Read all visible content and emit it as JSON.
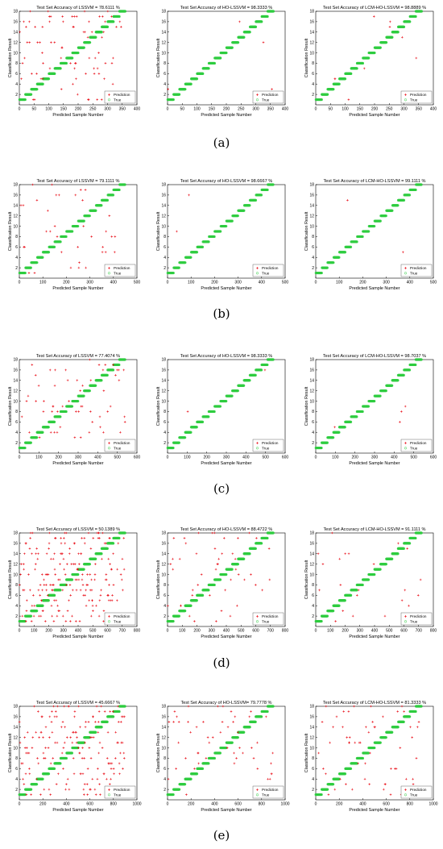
{
  "colors": {
    "prediction": "#e8000b",
    "true": "#2ecc40",
    "axis": "#000000",
    "background": "#ffffff"
  },
  "row_labels": [
    "(a)",
    "(b)",
    "(c)",
    "(d)",
    "(e)"
  ],
  "chart_data": [
    {
      "type": "scatter",
      "row": "(a)",
      "title": "Test Set Accuracy of LSSVM = 78.6111 %",
      "xlabel": "Predicted Sample Number",
      "ylabel": "Classification Result",
      "xlim": [
        0,
        400
      ],
      "ylim": [
        0,
        18
      ],
      "xticks": [
        0,
        50,
        100,
        150,
        200,
        250,
        300,
        350,
        400
      ],
      "yticks": [
        2,
        4,
        6,
        8,
        10,
        12,
        14,
        16,
        18
      ],
      "legend": [
        "Prediction",
        "True"
      ],
      "legend_position": "bottom-right",
      "n_samples": 360,
      "accuracy": 78.6111
    },
    {
      "type": "scatter",
      "row": "(a)",
      "title": "Test Set Accuracy of HO-LSSVM  = 98.3333 %",
      "xlabel": "Predicted Sample Number",
      "ylabel": "Classification Result",
      "xlim": [
        0,
        400
      ],
      "ylim": [
        0,
        18
      ],
      "xticks": [
        0,
        50,
        100,
        150,
        200,
        250,
        300,
        350,
        400
      ],
      "yticks": [
        2,
        4,
        6,
        8,
        10,
        12,
        14,
        16,
        18
      ],
      "legend": [
        "Prediction",
        "True"
      ],
      "legend_position": "bottom-right",
      "n_samples": 360,
      "accuracy": 98.3333
    },
    {
      "type": "scatter",
      "row": "(a)",
      "title": "Test Set Accuracy of LCM-HO-LSSVM = 98.8889 %",
      "xlabel": "Predicted Sample Number",
      "ylabel": "Classification Result",
      "xlim": [
        0,
        400
      ],
      "ylim": [
        0,
        18
      ],
      "xticks": [
        0,
        50,
        100,
        150,
        200,
        250,
        300,
        350,
        400
      ],
      "yticks": [
        2,
        4,
        6,
        8,
        10,
        12,
        14,
        16,
        18
      ],
      "legend": [
        "Prediction",
        "True"
      ],
      "legend_position": "bottom-right",
      "n_samples": 360,
      "accuracy": 98.8889
    },
    {
      "type": "scatter",
      "row": "(b)",
      "title": "Test Set Accuracy of LSSVM = 79.1111 %",
      "xlabel": "Predicted Sample Number",
      "ylabel": "Classification Result",
      "xlim": [
        0,
        500
      ],
      "ylim": [
        0,
        18
      ],
      "xticks": [
        0,
        100,
        200,
        300,
        400,
        500
      ],
      "yticks": [
        2,
        4,
        6,
        8,
        10,
        12,
        14,
        16,
        18
      ],
      "legend": [
        "Prediction",
        "True"
      ],
      "legend_position": "bottom-right",
      "n_samples": 450,
      "accuracy": 79.1111
    },
    {
      "type": "scatter",
      "row": "(b)",
      "title": "Test Set Accuracy of HO-LSSVM = 98.6667 %",
      "xlabel": "Predicted Sample Number",
      "ylabel": "Classification Result",
      "xlim": [
        0,
        500
      ],
      "ylim": [
        0,
        18
      ],
      "xticks": [
        0,
        100,
        200,
        300,
        400,
        500
      ],
      "yticks": [
        2,
        4,
        6,
        8,
        10,
        12,
        14,
        16,
        18
      ],
      "legend": [
        "Prediction",
        "True"
      ],
      "legend_position": "bottom-right",
      "n_samples": 450,
      "accuracy": 98.6667
    },
    {
      "type": "scatter",
      "row": "(b)",
      "title": "Test Set Accuracy of LCM-HO-LSSVM = 99.1111 %",
      "xlabel": "Predicted Sample Number",
      "ylabel": "Classification Result",
      "xlim": [
        0,
        500
      ],
      "ylim": [
        0,
        18
      ],
      "xticks": [
        0,
        100,
        200,
        300,
        400,
        500
      ],
      "yticks": [
        2,
        4,
        6,
        8,
        10,
        12,
        14,
        16,
        18
      ],
      "legend": [
        "Prediction",
        "True"
      ],
      "legend_position": "bottom-right",
      "n_samples": 450,
      "accuracy": 99.1111
    },
    {
      "type": "scatter",
      "row": "(c)",
      "title": "Test Set Accuracy of LSSVM = 77.4074 %",
      "xlabel": "Predicted Sample Number",
      "ylabel": "Classification Result",
      "xlim": [
        0,
        600
      ],
      "ylim": [
        0,
        18
      ],
      "xticks": [
        0,
        100,
        200,
        300,
        400,
        500,
        600
      ],
      "yticks": [
        2,
        4,
        6,
        8,
        10,
        12,
        14,
        16,
        18
      ],
      "legend": [
        "Prediction",
        "True"
      ],
      "legend_position": "bottom-right",
      "n_samples": 540,
      "accuracy": 77.4074
    },
    {
      "type": "scatter",
      "row": "(c)",
      "title": "Test Set Accuracy of HO-LSSVM = 98.3333 %",
      "xlabel": "Predicted Sample Number",
      "ylabel": "Classification Result",
      "xlim": [
        0,
        600
      ],
      "ylim": [
        0,
        18
      ],
      "xticks": [
        0,
        100,
        200,
        300,
        400,
        500,
        600
      ],
      "yticks": [
        2,
        4,
        6,
        8,
        10,
        12,
        14,
        16,
        18
      ],
      "legend": [
        "Prediction",
        "True"
      ],
      "legend_position": "bottom-right",
      "n_samples": 540,
      "accuracy": 98.3333
    },
    {
      "type": "scatter",
      "row": "(c)",
      "title": "Test Set Accuracy of LCM-HO-LSSVM = 98.7037 %",
      "xlabel": "Predicted Sample Number",
      "ylabel": "Classification Result",
      "xlim": [
        0,
        600
      ],
      "ylim": [
        0,
        18
      ],
      "xticks": [
        0,
        100,
        200,
        300,
        400,
        500,
        600
      ],
      "yticks": [
        2,
        4,
        6,
        8,
        10,
        12,
        14,
        16,
        18
      ],
      "legend": [
        "Prediction",
        "True"
      ],
      "legend_position": "bottom-right",
      "n_samples": 540,
      "accuracy": 98.7037
    },
    {
      "type": "scatter",
      "row": "(d)",
      "title": "Test Set Accuracy of LSSVM = 50.1389 %",
      "xlabel": "Predicted Sample Number",
      "ylabel": "Classification Result",
      "xlim": [
        0,
        800
      ],
      "ylim": [
        0,
        18
      ],
      "xticks": [
        0,
        100,
        200,
        300,
        400,
        500,
        600,
        700,
        800
      ],
      "yticks": [
        2,
        4,
        6,
        8,
        10,
        12,
        14,
        16,
        18
      ],
      "legend": [
        "Prediction",
        "True"
      ],
      "legend_position": "bottom-right",
      "n_samples": 720,
      "accuracy": 50.1389
    },
    {
      "type": "scatter",
      "row": "(d)",
      "title": "Test Set Accuracy of HO-LSSVM = 88.4722 %",
      "xlabel": "Predicted Sample Number",
      "ylabel": "Classification Result",
      "xlim": [
        0,
        800
      ],
      "ylim": [
        0,
        18
      ],
      "xticks": [
        0,
        100,
        200,
        300,
        400,
        500,
        600,
        700,
        800
      ],
      "yticks": [
        2,
        4,
        6,
        8,
        10,
        12,
        14,
        16,
        18
      ],
      "legend": [
        "Prediction",
        "True"
      ],
      "legend_position": "bottom-right",
      "n_samples": 720,
      "accuracy": 88.4722
    },
    {
      "type": "scatter",
      "row": "(d)",
      "title": "Test Set Accuracy of LCM-HO-LSSVM = 91.1111 %",
      "xlabel": "Predicted Sample Number",
      "ylabel": "Classification Result",
      "xlim": [
        0,
        800
      ],
      "ylim": [
        0,
        18
      ],
      "xticks": [
        0,
        100,
        200,
        300,
        400,
        500,
        600,
        700,
        800
      ],
      "yticks": [
        2,
        4,
        6,
        8,
        10,
        12,
        14,
        16,
        18
      ],
      "legend": [
        "Prediction",
        "True"
      ],
      "legend_position": "bottom-right",
      "n_samples": 720,
      "accuracy": 91.1111
    },
    {
      "type": "scatter",
      "row": "(e)",
      "title": "Test Set Accuracy of LSSVM = 45.6667 %",
      "xlabel": "Predicted Sample Number",
      "ylabel": "Classification Result",
      "xlim": [
        0,
        1000
      ],
      "ylim": [
        0,
        18
      ],
      "xticks": [
        0,
        200,
        400,
        600,
        800,
        1000
      ],
      "yticks": [
        2,
        4,
        6,
        8,
        10,
        12,
        14,
        16,
        18
      ],
      "legend": [
        "Prediction",
        "True"
      ],
      "legend_position": "bottom-right",
      "n_samples": 900,
      "accuracy": 45.6667
    },
    {
      "type": "scatter",
      "row": "(e)",
      "title": "Test Set Accuracy of HO-LSSVM= 79.7778 %",
      "xlabel": "Predicted Sample Number",
      "ylabel": "Classification Result",
      "xlim": [
        0,
        1000
      ],
      "ylim": [
        0,
        18
      ],
      "xticks": [
        0,
        200,
        400,
        600,
        800,
        1000
      ],
      "yticks": [
        2,
        4,
        6,
        8,
        10,
        12,
        14,
        16,
        18
      ],
      "legend": [
        "Prediction",
        "True"
      ],
      "legend_position": "bottom-right",
      "n_samples": 900,
      "accuracy": 79.7778
    },
    {
      "type": "scatter",
      "row": "(e)",
      "title": "Test Set Accuracy of LCM-HO-LSSVM = 81.3333 %",
      "xlabel": "Predicted Sample Number",
      "ylabel": "Classification Result",
      "xlim": [
        0,
        1000
      ],
      "ylim": [
        0,
        18
      ],
      "xticks": [
        0,
        200,
        400,
        600,
        800,
        1000
      ],
      "yticks": [
        2,
        4,
        6,
        8,
        10,
        12,
        14,
        16,
        18
      ],
      "legend": [
        "Prediction",
        "True"
      ],
      "legend_position": "bottom-right",
      "n_samples": 900,
      "accuracy": 81.3333
    }
  ]
}
